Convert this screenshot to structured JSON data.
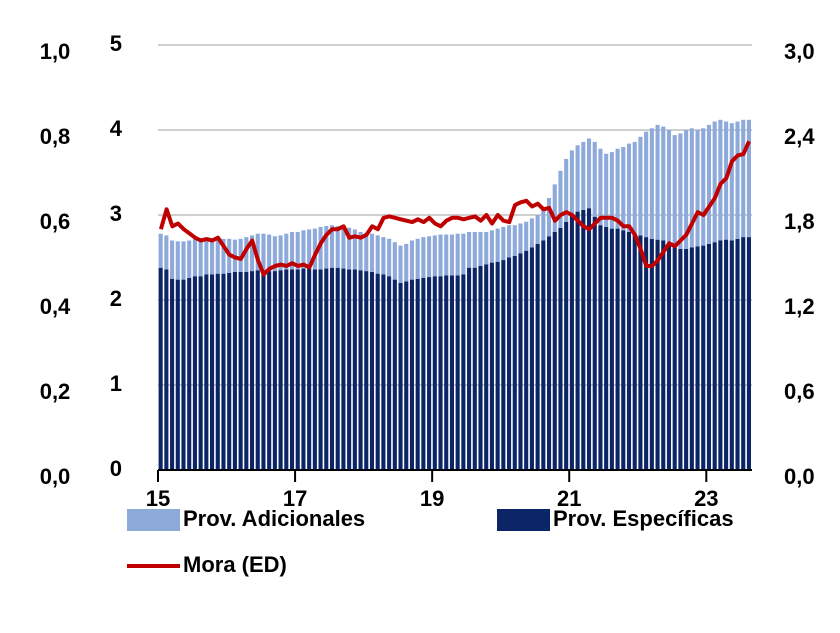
{
  "chart_data": {
    "type": "bar",
    "stacked": true,
    "grid": true,
    "categories": [
      "15",
      null,
      null,
      null,
      null,
      null,
      null,
      null,
      null,
      null,
      null,
      null,
      null,
      null,
      null,
      null,
      null,
      null,
      null,
      null,
      null,
      null,
      null,
      null,
      "17",
      null,
      null,
      null,
      null,
      null,
      null,
      null,
      null,
      null,
      null,
      null,
      null,
      null,
      null,
      null,
      null,
      null,
      null,
      null,
      null,
      null,
      null,
      null,
      "19",
      null,
      null,
      null,
      null,
      null,
      null,
      null,
      null,
      null,
      null,
      null,
      null,
      null,
      null,
      null,
      null,
      null,
      null,
      null,
      null,
      null,
      null,
      null,
      "21",
      null,
      null,
      null,
      null,
      null,
      null,
      null,
      null,
      null,
      null,
      null,
      null,
      null,
      null,
      null,
      null,
      null,
      null,
      null,
      null,
      null,
      null,
      null,
      "23",
      null,
      null,
      null,
      null,
      null,
      null,
      null
    ],
    "ylim": [
      0,
      5
    ],
    "yticks": [
      0,
      1,
      2,
      3,
      4,
      5
    ],
    "y2lim": [
      0,
      3
    ],
    "y2ticks": [
      {
        "value": 0,
        "label": "0,0"
      },
      {
        "value": 0.6,
        "label": "0,6"
      },
      {
        "value": 1.2,
        "label": "1,2"
      },
      {
        "value": 1.8,
        "label": "1,8"
      },
      {
        "value": 2.4,
        "label": "2,4"
      },
      {
        "value": 3,
        "label": "3,0"
      }
    ],
    "y3lim": [
      0,
      1
    ],
    "y3ticks": [
      {
        "value": 0,
        "label": "0,0"
      },
      {
        "value": 0.2,
        "label": "0,2"
      },
      {
        "value": 0.4,
        "label": "0,4"
      },
      {
        "value": 0.6,
        "label": "0,6"
      },
      {
        "value": 0.8,
        "label": "0,8"
      },
      {
        "value": 1,
        "label": "1,0"
      }
    ],
    "series": [
      {
        "name": "Prov. Específicas",
        "type": "bar",
        "color": "#0b2566",
        "values": [
          2.38,
          2.36,
          2.25,
          2.24,
          2.24,
          2.26,
          2.28,
          2.28,
          2.3,
          2.3,
          2.31,
          2.31,
          2.32,
          2.33,
          2.33,
          2.33,
          2.34,
          2.35,
          2.35,
          2.34,
          2.34,
          2.35,
          2.36,
          2.36,
          2.36,
          2.37,
          2.37,
          2.36,
          2.36,
          2.37,
          2.38,
          2.38,
          2.37,
          2.36,
          2.36,
          2.35,
          2.34,
          2.33,
          2.31,
          2.3,
          2.28,
          2.24,
          2.2,
          2.22,
          2.24,
          2.25,
          2.26,
          2.27,
          2.28,
          2.28,
          2.29,
          2.29,
          2.29,
          2.3,
          2.38,
          2.38,
          2.4,
          2.42,
          2.44,
          2.45,
          2.47,
          2.5,
          2.52,
          2.55,
          2.58,
          2.62,
          2.66,
          2.7,
          2.75,
          2.8,
          2.85,
          2.92,
          3.02,
          3.04,
          3.06,
          3.08,
          2.98,
          2.88,
          2.86,
          2.84,
          2.84,
          2.82,
          2.8,
          2.78,
          2.76,
          2.74,
          2.72,
          2.71,
          2.7,
          2.66,
          2.62,
          2.6,
          2.6,
          2.62,
          2.63,
          2.64,
          2.66,
          2.68,
          2.7,
          2.71,
          2.7,
          2.72,
          2.74,
          2.74
        ]
      },
      {
        "name": "Prov. Adicionales",
        "type": "bar",
        "color": "#8eaadb",
        "values": [
          0.4,
          0.4,
          0.45,
          0.45,
          0.45,
          0.44,
          0.44,
          0.44,
          0.42,
          0.43,
          0.41,
          0.41,
          0.4,
          0.38,
          0.39,
          0.41,
          0.42,
          0.43,
          0.43,
          0.43,
          0.41,
          0.41,
          0.42,
          0.44,
          0.44,
          0.45,
          0.46,
          0.48,
          0.5,
          0.5,
          0.5,
          0.49,
          0.49,
          0.49,
          0.47,
          0.45,
          0.45,
          0.45,
          0.45,
          0.44,
          0.44,
          0.44,
          0.44,
          0.44,
          0.46,
          0.47,
          0.48,
          0.48,
          0.48,
          0.49,
          0.48,
          0.48,
          0.49,
          0.48,
          0.42,
          0.42,
          0.4,
          0.38,
          0.38,
          0.39,
          0.39,
          0.38,
          0.36,
          0.35,
          0.34,
          0.34,
          0.34,
          0.38,
          0.45,
          0.56,
          0.67,
          0.74,
          0.74,
          0.78,
          0.8,
          0.82,
          0.88,
          0.9,
          0.86,
          0.9,
          0.94,
          0.98,
          1.04,
          1.08,
          1.16,
          1.24,
          1.3,
          1.35,
          1.34,
          1.34,
          1.32,
          1.36,
          1.4,
          1.4,
          1.37,
          1.38,
          1.4,
          1.42,
          1.42,
          1.39,
          1.38,
          1.38,
          1.38,
          1.38
        ]
      },
      {
        "name": "Mora (ED)",
        "type": "line",
        "axis": "y2",
        "color": "#c00000",
        "values": [
          1.7,
          1.84,
          1.72,
          1.74,
          1.7,
          1.67,
          1.64,
          1.62,
          1.63,
          1.62,
          1.64,
          1.58,
          1.52,
          1.5,
          1.49,
          1.56,
          1.62,
          1.48,
          1.38,
          1.42,
          1.44,
          1.45,
          1.44,
          1.46,
          1.44,
          1.45,
          1.43,
          1.52,
          1.6,
          1.66,
          1.7,
          1.7,
          1.72,
          1.64,
          1.65,
          1.64,
          1.66,
          1.72,
          1.7,
          1.78,
          1.79,
          1.78,
          1.77,
          1.76,
          1.75,
          1.77,
          1.75,
          1.78,
          1.74,
          1.72,
          1.76,
          1.78,
          1.78,
          1.77,
          1.78,
          1.79,
          1.76,
          1.8,
          1.74,
          1.8,
          1.76,
          1.75,
          1.87,
          1.89,
          1.9,
          1.86,
          1.88,
          1.84,
          1.85,
          1.76,
          1.8,
          1.82,
          1.8,
          1.76,
          1.72,
          1.7,
          1.74,
          1.78,
          1.78,
          1.78,
          1.76,
          1.72,
          1.72,
          1.66,
          1.56,
          1.44,
          1.44,
          1.48,
          1.54,
          1.6,
          1.58,
          1.62,
          1.66,
          1.74,
          1.82,
          1.8,
          1.86,
          1.92,
          2.02,
          2.06,
          2.18,
          2.22,
          2.23,
          2.32
        ]
      }
    ]
  }
}
